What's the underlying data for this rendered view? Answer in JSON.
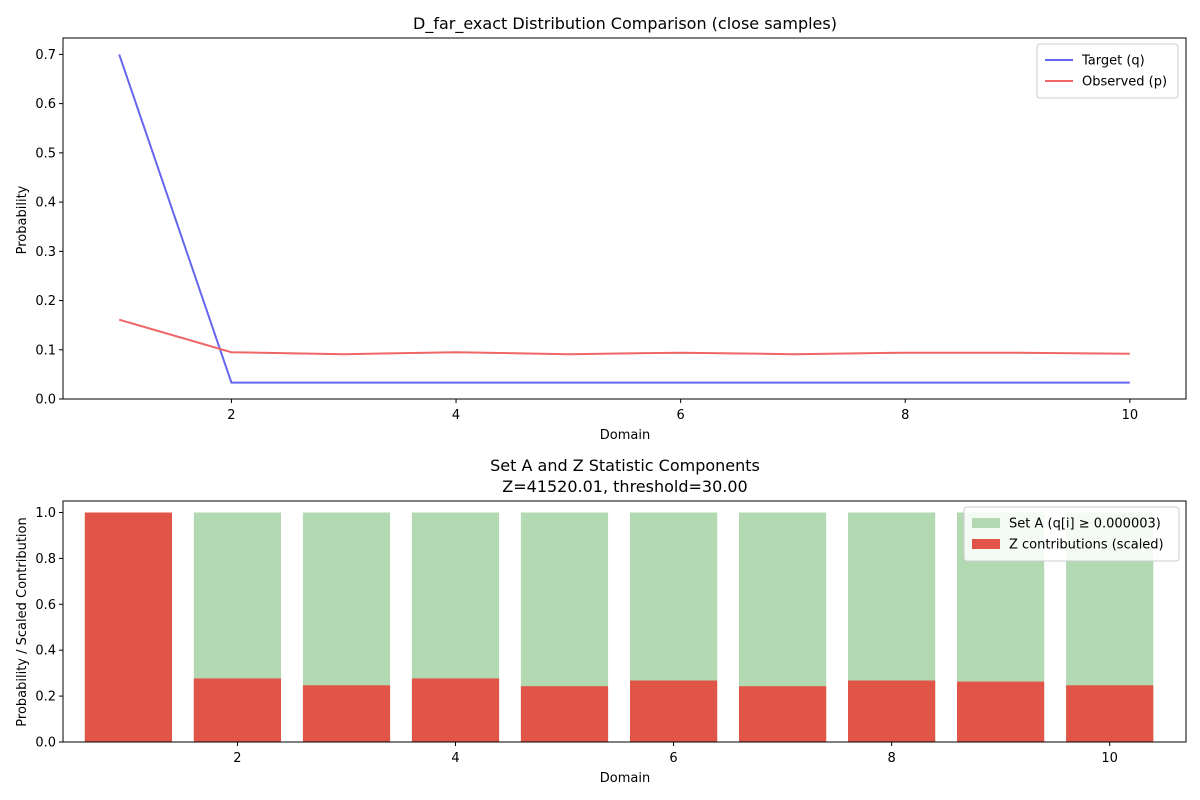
{
  "chart_data": [
    {
      "type": "line",
      "title": "D_far_exact Distribution Comparison (close samples)",
      "xlabel": "Domain",
      "ylabel": "Probability",
      "xlim": [
        0.5,
        10.5
      ],
      "ylim": [
        0,
        0.7333
      ],
      "xticks": [
        2,
        4,
        6,
        8,
        10
      ],
      "yticks": [
        0.0,
        0.1,
        0.2,
        0.3,
        0.4,
        0.5,
        0.6,
        0.7
      ],
      "ytick_labels": [
        "0.0",
        "0.1",
        "0.2",
        "0.3",
        "0.4",
        "0.5",
        "0.6",
        "0.7"
      ],
      "legend_position": "top-right",
      "x": [
        1,
        2,
        3,
        4,
        5,
        6,
        7,
        8,
        9,
        10
      ],
      "series": [
        {
          "name": "Target (q)",
          "color": "#6666ee",
          "values": [
            0.7,
            0.0333,
            0.0333,
            0.0333,
            0.0333,
            0.0333,
            0.0333,
            0.0333,
            0.0333,
            0.0333
          ]
        },
        {
          "name": "Observed (p)",
          "color": "#ee6666",
          "values": [
            0.161,
            0.095,
            0.091,
            0.095,
            0.091,
            0.094,
            0.091,
            0.094,
            0.094,
            0.092
          ]
        }
      ]
    },
    {
      "type": "bar",
      "title": "Set A and Z Statistic Components",
      "subtitle": "Z=41520.01, threshold=30.00",
      "xlabel": "Domain",
      "ylabel": "Probability / Scaled Contribution",
      "xlim": [
        0.4,
        10.7
      ],
      "ylim": [
        0,
        1.05
      ],
      "xticks": [
        2,
        4,
        6,
        8,
        10
      ],
      "yticks": [
        0.0,
        0.2,
        0.4,
        0.6,
        0.8,
        1.0
      ],
      "ytick_labels": [
        "0.0",
        "0.2",
        "0.4",
        "0.6",
        "0.8",
        "1.0"
      ],
      "legend_position": "top-right",
      "categories": [
        1,
        2,
        3,
        4,
        5,
        6,
        7,
        8,
        9,
        10
      ],
      "series": [
        {
          "name": "Set A (q[i] ≥ 0.000003)",
          "color": "#b2d9b2",
          "values": [
            1,
            1,
            1,
            1,
            1,
            1,
            1,
            1,
            1,
            1
          ]
        },
        {
          "name": "Z contributions (scaled)",
          "color": "#e05548",
          "values": [
            1.0,
            0.277,
            0.247,
            0.277,
            0.243,
            0.268,
            0.243,
            0.268,
            0.263,
            0.247
          ]
        }
      ]
    }
  ]
}
